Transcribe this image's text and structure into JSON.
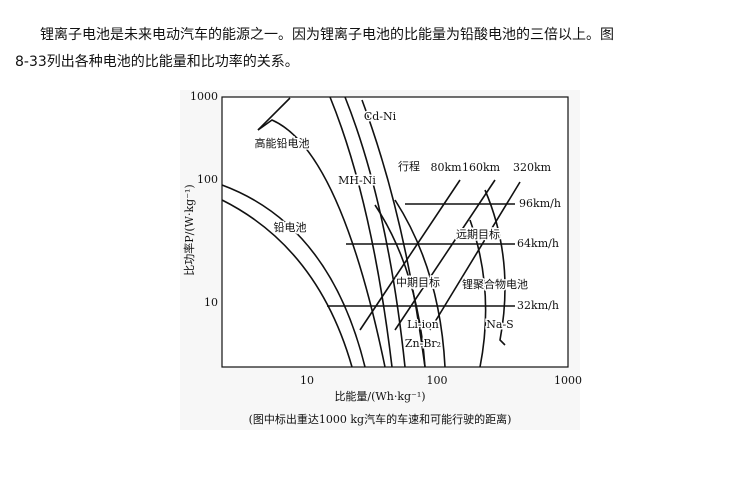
{
  "paragraph": {
    "lines": [
      "锂离子电池是未来电动汽车的能源之一。因为锂离子电池的比能量为铅酸电池的三倍以上。图",
      "8-33列出各种电池的比能量和比功率的关系。"
    ]
  },
  "figure": {
    "y_axis_title": "比功率P/(W·kg⁻¹)",
    "x_axis_title": "比能量/(Wh·kg⁻¹)",
    "y_tick_labels": [
      "1000",
      "100",
      "10"
    ],
    "x_tick_labels": [
      "10",
      "100",
      "1000"
    ],
    "labels": [
      "Cd-Ni",
      "高能铅电池",
      "MH-Ni",
      "行程",
      "80km",
      "160km",
      "320km",
      "96km/h",
      "远期目标",
      "64km/h",
      "铅电池",
      "中期目标",
      "锂聚合物电池",
      "32km/h",
      "Li-ion",
      "Na-S",
      "Zn-Br₂"
    ],
    "caption": "(图中标出重达1000 kg汽车的车速和可能行驶的距离)"
  }
}
